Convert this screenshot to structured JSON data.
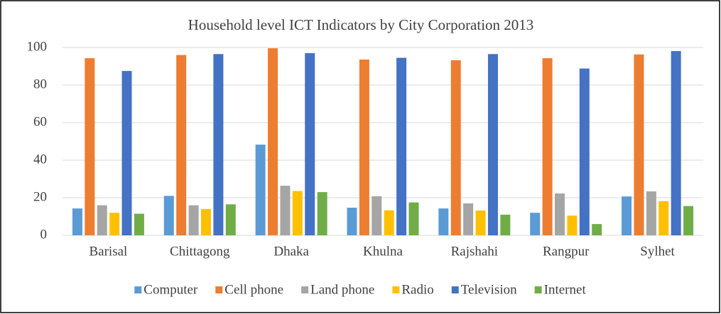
{
  "chart_data": {
    "type": "bar",
    "title": "Household level ICT Indicators  by City Corporation 2013",
    "categories": [
      "Barisal",
      "Chittagong",
      "Dhaka",
      "Khulna",
      "Rajshahi",
      "Rangpur",
      "Sylhet"
    ],
    "series": [
      {
        "name": "Computer",
        "color": "#5b9bd5",
        "values": [
          14.3,
          21,
          48.3,
          14.7,
          14.3,
          12,
          20.7
        ]
      },
      {
        "name": "Cell phone",
        "color": "#ed7d31",
        "values": [
          94.3,
          96,
          99.6,
          93.6,
          93.2,
          94.3,
          96.3
        ]
      },
      {
        "name": "Land phone",
        "color": "#a5a5a5",
        "values": [
          16,
          16,
          26.4,
          20.8,
          17,
          22.3,
          23.4
        ]
      },
      {
        "name": "Radio",
        "color": "#ffc000",
        "values": [
          12,
          14,
          23.6,
          13.3,
          13.2,
          10.5,
          18.2
        ]
      },
      {
        "name": "Television",
        "color": "#4472c4",
        "values": [
          87.5,
          96.5,
          97,
          94.5,
          96.5,
          88.8,
          98.1
        ]
      },
      {
        "name": "Internet",
        "color": "#70ad47",
        "values": [
          11.5,
          16.5,
          23,
          17.5,
          11,
          6,
          15.6
        ]
      }
    ],
    "ylim": [
      0,
      100
    ],
    "yticks": [
      0,
      20,
      40,
      60,
      80,
      100
    ],
    "grid": true,
    "legend": "bottom"
  }
}
